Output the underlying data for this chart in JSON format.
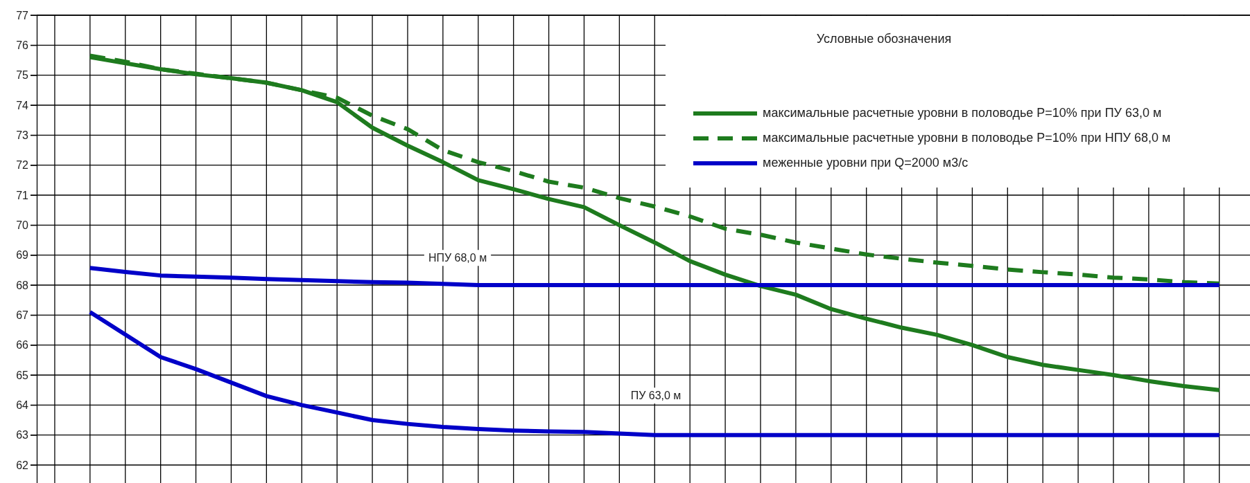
{
  "chart_data": {
    "type": "line",
    "categories": [
      null,
      null,
      null,
      null,
      null,
      null,
      null,
      null,
      null,
      null,
      null,
      null,
      null,
      null,
      null,
      null,
      null,
      null,
      null,
      null,
      null,
      null,
      null,
      null,
      null,
      null,
      null,
      null,
      null,
      null,
      null,
      null,
      null,
      null
    ],
    "series": [
      {
        "name": "максимальные расчетные  уровни в половодье Р=10% при ПУ 63,0 м",
        "color": "#1e7b1e",
        "line_style": "solid",
        "values": [
          null,
          75.6,
          75.4,
          75.2,
          75.03,
          74.9,
          74.75,
          74.5,
          74.1,
          73.25,
          72.65,
          72.1,
          71.5,
          71.2,
          70.87,
          70.6,
          70.0,
          69.42,
          68.8,
          68.35,
          67.97,
          67.68,
          67.2,
          66.88,
          66.58,
          66.34,
          66.0,
          65.6,
          65.34,
          65.17,
          65.0,
          64.8,
          64.63,
          64.5
        ]
      },
      {
        "name": "максимальные расчетные уровни в половодье Р=10% при НПУ 68,0 м",
        "color": "#1e7b1e",
        "line_style": "dashed",
        "values": [
          null,
          75.65,
          75.45,
          75.2,
          75.05,
          74.9,
          74.75,
          74.5,
          74.25,
          73.65,
          73.2,
          72.5,
          72.1,
          71.8,
          71.45,
          71.25,
          70.9,
          70.62,
          70.29,
          69.88,
          69.68,
          69.42,
          69.22,
          69.02,
          68.88,
          68.75,
          68.64,
          68.52,
          68.43,
          68.35,
          68.25,
          68.19,
          68.1,
          68.05
        ]
      },
      {
        "name": "меженные уровни при Q=2000 м3/с",
        "color": "#0000c8",
        "line_style": "solid",
        "values": [
          null,
          68.57,
          68.44,
          68.32,
          68.28,
          68.25,
          68.2,
          68.17,
          68.13,
          68.1,
          68.08,
          68.04,
          68.0,
          68,
          68,
          68,
          68,
          68,
          68,
          68,
          68,
          68,
          68,
          68,
          68,
          68,
          68,
          68,
          68,
          68,
          68,
          68,
          68,
          68
        ]
      },
      {
        "color": "#0000c8",
        "line_style": "solid",
        "values": [
          null,
          67.1,
          66.35,
          65.6,
          65.2,
          64.75,
          64.3,
          64.0,
          63.75,
          63.5,
          63.37,
          63.27,
          63.2,
          63.15,
          63.12,
          63.1,
          63.05,
          63,
          63,
          63,
          63,
          63,
          63,
          63,
          63,
          63,
          63,
          63,
          63,
          63,
          63,
          63,
          63,
          63
        ]
      }
    ],
    "ylim": [
      61.4,
      77
    ],
    "yticks": [
      62,
      63,
      64,
      65,
      66,
      67,
      68,
      69,
      70,
      71,
      72,
      73,
      74,
      75,
      76,
      77
    ],
    "grid": true,
    "legend": "top right",
    "legend_title": "Условные обозначения",
    "marker": "none",
    "annotations": [
      "НПУ 68,0 м",
      "ПУ 63,0 м"
    ]
  }
}
